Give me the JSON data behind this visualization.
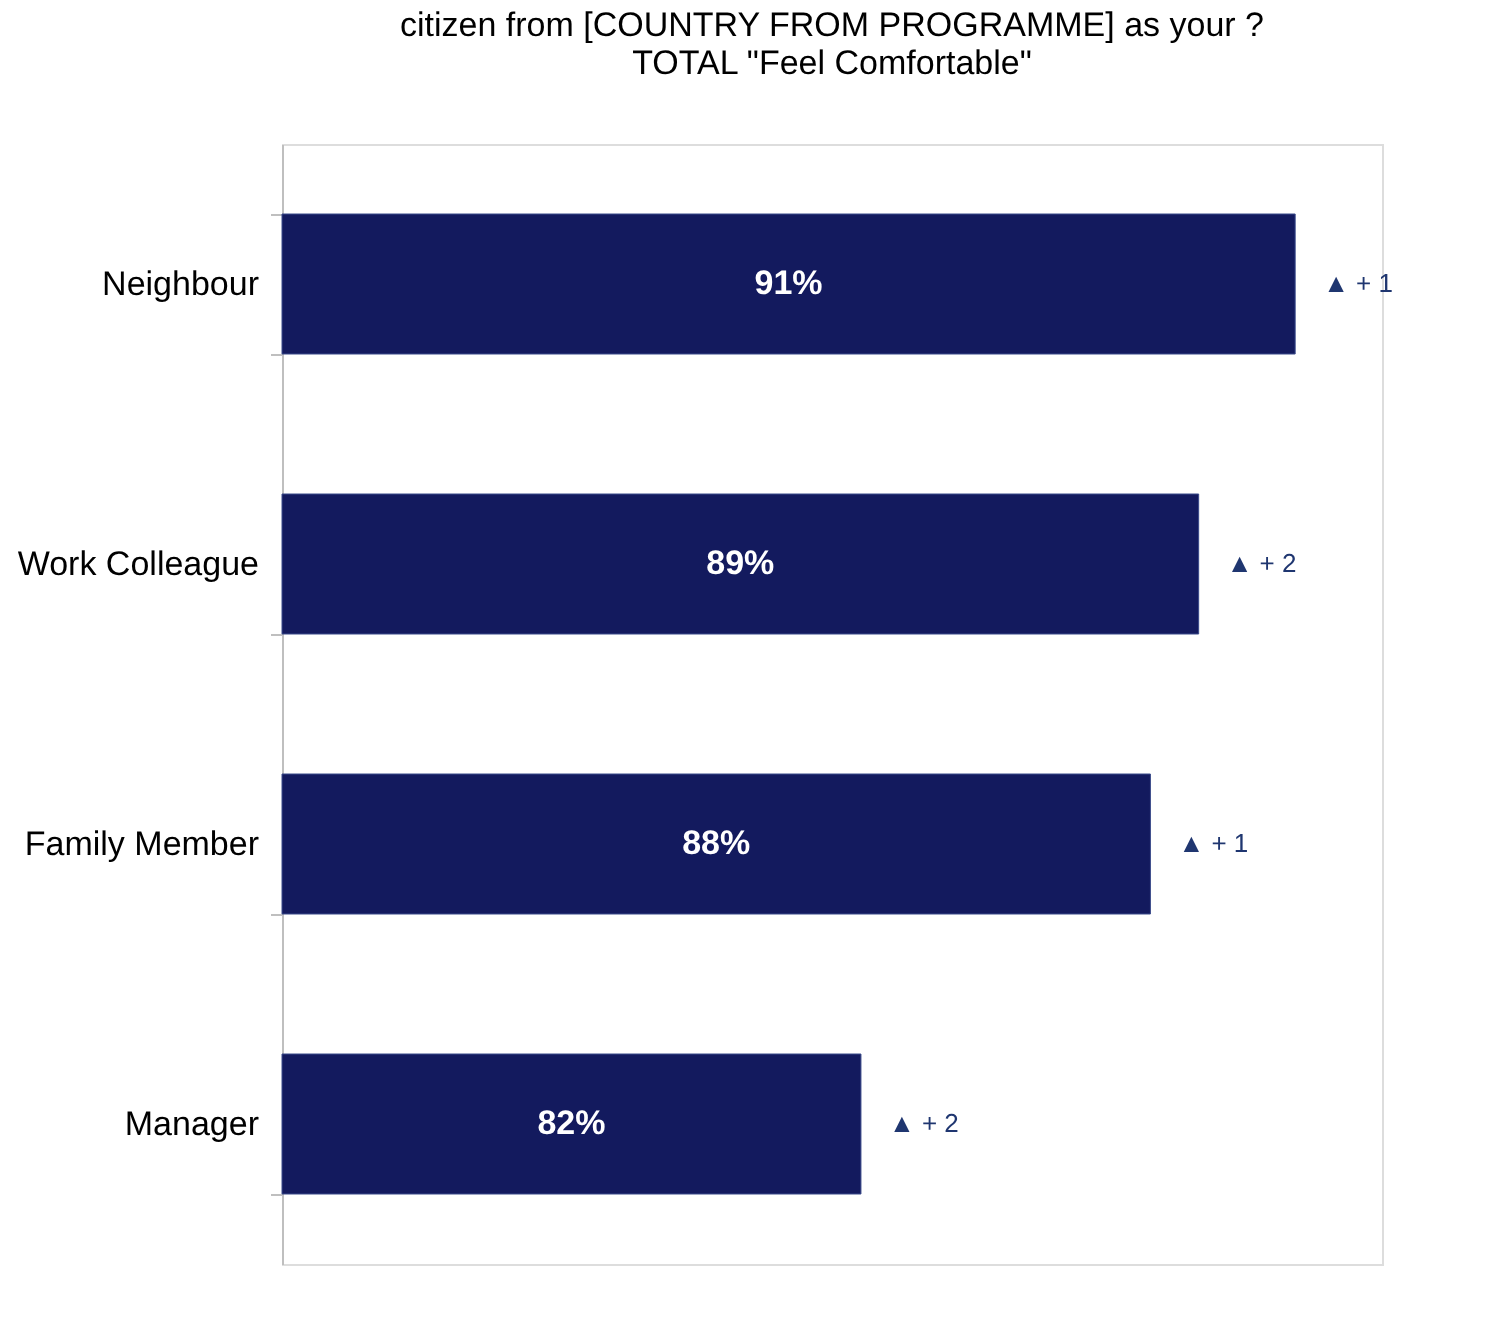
{
  "chart_data": {
    "type": "bar",
    "orientation": "horizontal",
    "title": [
      "citizen from [COUNTRY FROM PROGRAMME] as your ?",
      "TOTAL \"Feel Comfortable\""
    ],
    "categories": [
      "Neighbour",
      "Work Colleague",
      "Family Member",
      "Manager"
    ],
    "values": [
      91,
      89,
      88,
      82
    ],
    "value_labels": [
      "91%",
      "89%",
      "88%",
      "82%"
    ],
    "color": "#131a5e",
    "xlim": [
      70,
      92.8
    ],
    "tick_labels": "y",
    "grid": false,
    "annotations": [
      {
        "text": "▲ + 1",
        "x": 91,
        "y": "Neighbour"
      },
      {
        "text": "▲ + 2",
        "x": 89,
        "y": "Work Colleague"
      },
      {
        "text": "▲ + 1",
        "x": 88,
        "y": "Family Member"
      },
      {
        "text": "▲ + 2",
        "x": 82,
        "y": "Manager"
      }
    ]
  }
}
